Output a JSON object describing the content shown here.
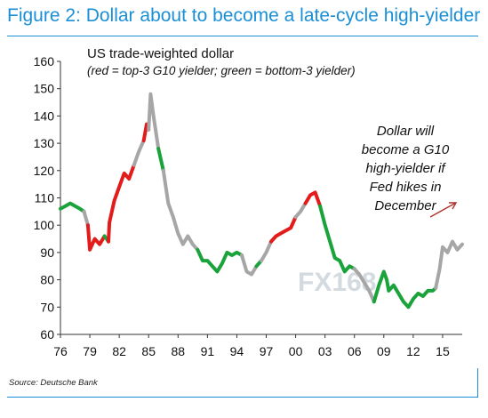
{
  "figure_title": "Figure 2: Dollar about to become a late-cycle high-yielder",
  "source": "Source: Deutsche Bank",
  "watermark": "FX168",
  "colors": {
    "accent": "#1a8fd6",
    "neutral": "#a6a6a6",
    "top3_yielder": "#e31b1b",
    "bottom3_yielder": "#1aa33a"
  },
  "chart_data": {
    "type": "line",
    "title": "US trade-weighted dollar",
    "subtitle": "(red = top-3  G10 yielder;  green = bottom-3 yielder)",
    "annotation": [
      "Dollar will",
      "become a  G10",
      "high-yielder if",
      "Fed hikes in",
      "December"
    ],
    "x_ticks": [
      "76",
      "79",
      "82",
      "85",
      "88",
      "91",
      "94",
      "97",
      "00",
      "03",
      "06",
      "09",
      "12",
      "15"
    ],
    "y_ticks": [
      60,
      70,
      80,
      90,
      100,
      110,
      120,
      130,
      140,
      150,
      160
    ],
    "ylim": [
      60,
      160
    ],
    "xlim": [
      1976,
      2017
    ],
    "grid": false,
    "series": [
      {
        "x": [
          1976,
          1976.5,
          1977,
          1977.5,
          1978,
          1978.4
        ],
        "values": [
          106,
          107,
          108,
          107,
          106,
          105
        ],
        "status": "bottom3"
      },
      {
        "x": [
          1978.4,
          1978.8
        ],
        "values": [
          105,
          100
        ],
        "status": "neutral"
      },
      {
        "x": [
          1978.8,
          1979,
          1979.5,
          1980,
          1980.5
        ],
        "values": [
          100,
          91,
          95,
          93,
          96
        ],
        "status": "top3"
      },
      {
        "x": [
          1980.5,
          1980.9
        ],
        "values": [
          96,
          94
        ],
        "status": "bottom3"
      },
      {
        "x": [
          1980.9,
          1981,
          1981.5,
          1982,
          1982.5,
          1983,
          1983.5
        ],
        "values": [
          94,
          101,
          109,
          114,
          119,
          117,
          122
        ],
        "status": "top3"
      },
      {
        "x": [
          1983.5,
          1984,
          1984.5
        ],
        "values": [
          122,
          127,
          131
        ],
        "status": "neutral"
      },
      {
        "x": [
          1984.5,
          1984.8,
          1985
        ],
        "values": [
          131,
          137,
          135
        ],
        "status": "top3"
      },
      {
        "x": [
          1985,
          1985.2,
          1985.5,
          1986
        ],
        "values": [
          135,
          148,
          140,
          128
        ],
        "status": "neutral"
      },
      {
        "x": [
          1986,
          1986.5
        ],
        "values": [
          128,
          120
        ],
        "status": "bottom3"
      },
      {
        "x": [
          1986.5,
          1987,
          1987.5,
          1988,
          1988.5,
          1989,
          1989.5,
          1990
        ],
        "values": [
          120,
          108,
          103,
          97,
          93,
          96,
          93,
          91
        ],
        "status": "neutral"
      },
      {
        "x": [
          1990,
          1990.5,
          1991,
          1991.5,
          1992,
          1992.5,
          1993,
          1993.5,
          1994,
          1994.5
        ],
        "values": [
          91,
          87,
          87,
          85,
          83,
          86,
          90,
          89,
          90,
          89
        ],
        "status": "bottom3"
      },
      {
        "x": [
          1994.5,
          1995,
          1995.5,
          1996
        ],
        "values": [
          89,
          83,
          82,
          85
        ],
        "status": "neutral"
      },
      {
        "x": [
          1996,
          1996.5
        ],
        "values": [
          85,
          87
        ],
        "status": "bottom3"
      },
      {
        "x": [
          1996.5,
          1997,
          1997.5
        ],
        "values": [
          87,
          90,
          94
        ],
        "status": "neutral"
      },
      {
        "x": [
          1997.5,
          1998,
          1998.5,
          1999,
          1999.5,
          2000
        ],
        "values": [
          94,
          96,
          97,
          98,
          99,
          103
        ],
        "status": "top3"
      },
      {
        "x": [
          2000,
          2000.5,
          2001
        ],
        "values": [
          103,
          105,
          108
        ],
        "status": "neutral"
      },
      {
        "x": [
          2001,
          2001.5,
          2002,
          2002.5
        ],
        "values": [
          108,
          111,
          112,
          107
        ],
        "status": "top3"
      },
      {
        "x": [
          2002.5,
          2003,
          2003.5,
          2004,
          2004.5,
          2005,
          2005.5,
          2006
        ],
        "values": [
          107,
          100,
          94,
          88,
          87,
          83,
          85,
          84
        ],
        "status": "bottom3"
      },
      {
        "x": [
          2006,
          2006.5,
          2007,
          2007.5,
          2008
        ],
        "values": [
          84,
          82,
          79,
          76,
          72
        ],
        "status": "neutral"
      },
      {
        "x": [
          2008,
          2008.5,
          2009,
          2009.3,
          2009.5,
          2010,
          2010.5,
          2011,
          2011.5,
          2012,
          2012.5,
          2013,
          2013.5,
          2014,
          2014.3
        ],
        "values": [
          72,
          78,
          83,
          80,
          76,
          78,
          75,
          72,
          70,
          73,
          75,
          74,
          76,
          76,
          77
        ],
        "status": "bottom3"
      },
      {
        "x": [
          2014.3,
          2014.7,
          2015,
          2015.5,
          2016,
          2016.5,
          2017
        ],
        "values": [
          77,
          84,
          92,
          90,
          94,
          91,
          93
        ],
        "status": "neutral"
      }
    ]
  }
}
